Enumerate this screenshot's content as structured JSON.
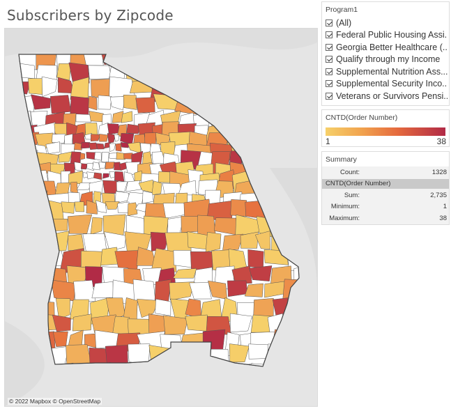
{
  "dashboard": {
    "title": "Subscribers by Zipcode"
  },
  "map": {
    "credit": "© 2022 Mapbox © OpenStreetMap",
    "color_scale": {
      "min_color": "#f6d06a",
      "mid_color": "#e8753f",
      "max_color": "#b12a46",
      "no_data_color": "#ffffff",
      "border_color": "#555555",
      "basemap_color": "#e5e5e5"
    }
  },
  "filter": {
    "title": "Program1",
    "items": [
      {
        "label": "(All)",
        "checked": true
      },
      {
        "label": "Federal Public Housing Assi...",
        "checked": true
      },
      {
        "label": "Georgia Better Healthcare (...",
        "checked": true
      },
      {
        "label": "Qualify through my Income",
        "checked": true
      },
      {
        "label": "Supplemental Nutrition Ass...",
        "checked": true
      },
      {
        "label": "Supplemental Security Inco...",
        "checked": true
      },
      {
        "label": "Veterans or Survivors Pensi...",
        "checked": true
      }
    ]
  },
  "legend": {
    "title": "CNTD(Order Number)",
    "min": "1",
    "max": "38"
  },
  "summary": {
    "title": "Summary",
    "count_label": "Count:",
    "count_value": "1328",
    "measure_header": "CNTD(Order Number)",
    "rows": [
      {
        "label": "Sum:",
        "value": "2,735"
      },
      {
        "label": "Minimum:",
        "value": "1"
      },
      {
        "label": "Maximum:",
        "value": "38"
      }
    ]
  }
}
